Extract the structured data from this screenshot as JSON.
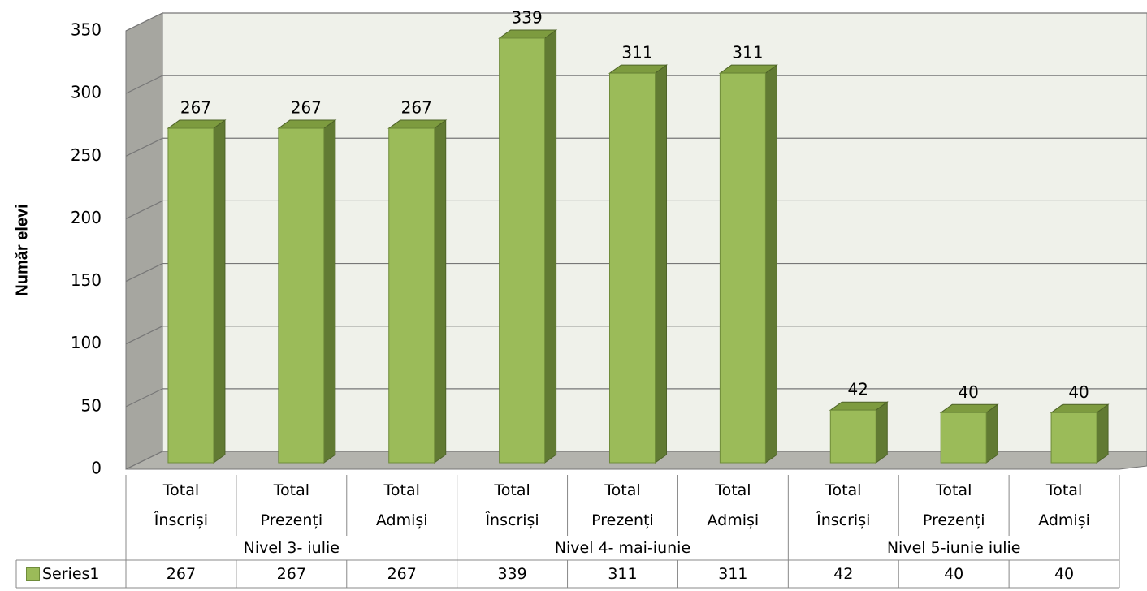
{
  "chart_data": {
    "type": "bar3d",
    "y_axis_label": "Număr elevi",
    "categories": [
      "Total Înscriși",
      "Total Prezenți",
      "Total Admiși",
      "Total Înscriși",
      "Total Prezenți",
      "Total Admiși",
      "Total Înscriși",
      "Total Prezenți",
      "Total Admiși"
    ],
    "groups": [
      "Nivel 3- iulie",
      "Nivel 4- mai-iunie",
      "Nivel 5-iunie iulie"
    ],
    "series": [
      {
        "name": "Series1",
        "color": "#9bbb59",
        "values": [
          267,
          267,
          267,
          339,
          311,
          311,
          42,
          40,
          40
        ]
      }
    ],
    "ylim": [
      0,
      350
    ],
    "yticks": [
      0,
      50,
      100,
      150,
      200,
      250,
      300,
      350
    ],
    "grid": true,
    "data_table": true
  }
}
